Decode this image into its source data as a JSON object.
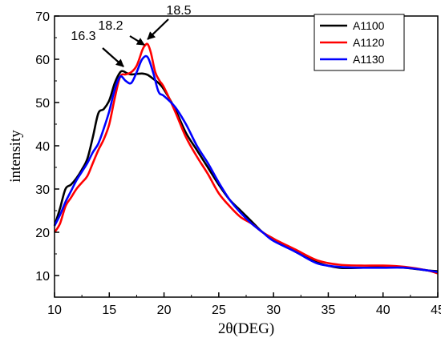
{
  "chart_data": {
    "type": "line",
    "xlabel": "2θ(DEG)",
    "ylabel": "intensity",
    "xlim": [
      10,
      45
    ],
    "ylim": [
      5,
      70
    ],
    "xticks": [
      10,
      15,
      20,
      25,
      30,
      35,
      40,
      45
    ],
    "yticks": [
      10,
      20,
      30,
      40,
      50,
      60,
      70
    ],
    "grid": false,
    "legend_position": "top-right",
    "series": [
      {
        "name": "A1100",
        "color": "#000000",
        "x": [
          10,
          10.5,
          11,
          11.5,
          12,
          12.5,
          13,
          13.5,
          14,
          14.5,
          15,
          15.5,
          16,
          16.3,
          16.6,
          17,
          17.5,
          18,
          18.5,
          19,
          19.5,
          20,
          21,
          22,
          23,
          24,
          25,
          26,
          27,
          28,
          29,
          30,
          32,
          34,
          36,
          38,
          40,
          42,
          44,
          45
        ],
        "y": [
          21.5,
          25.5,
          30,
          31,
          32.5,
          34.5,
          37,
          42,
          47.5,
          48.5,
          50.5,
          54.5,
          57,
          57.2,
          56.8,
          56.5,
          56.6,
          56.7,
          56.4,
          55.5,
          54.5,
          53,
          48.5,
          43,
          39,
          35,
          31,
          27.5,
          25,
          22.5,
          20,
          18.5,
          15.5,
          13,
          11.8,
          11.8,
          12,
          11.8,
          11.2,
          11
        ]
      },
      {
        "name": "A1120",
        "color": "#ff0000",
        "x": [
          10,
          10.5,
          11,
          11.5,
          12,
          12.5,
          13,
          13.5,
          14,
          14.5,
          15,
          15.5,
          16,
          16.5,
          17,
          17.5,
          18,
          18.2,
          18.5,
          18.8,
          19.2,
          19.6,
          20,
          21,
          22,
          23,
          24,
          25,
          26,
          27,
          28,
          29,
          30,
          32,
          34,
          36,
          38,
          40,
          42,
          44,
          45
        ],
        "y": [
          20,
          22,
          26,
          28,
          30,
          31.5,
          33,
          36,
          39,
          41.5,
          45,
          51,
          56,
          56.5,
          57,
          58.5,
          62,
          63,
          63.5,
          61.5,
          57,
          55,
          53.5,
          48,
          42,
          37.5,
          33.5,
          29,
          26,
          23.5,
          22,
          20,
          18.5,
          16,
          13.5,
          12.5,
          12.3,
          12.3,
          12,
          11.2,
          10.5
        ]
      },
      {
        "name": "A1130",
        "color": "#0000ff",
        "x": [
          10,
          10.5,
          11,
          11.5,
          12,
          12.5,
          13,
          13.5,
          14,
          14.5,
          15,
          15.5,
          16,
          16.5,
          17,
          17.5,
          18,
          18.5,
          19,
          19.5,
          20,
          21,
          22,
          23,
          24,
          25,
          26,
          27,
          28,
          29,
          30,
          32,
          34,
          36,
          38,
          40,
          42,
          44,
          45
        ],
        "y": [
          21.5,
          24,
          27,
          29.5,
          32,
          34,
          36,
          38.5,
          40.5,
          44,
          48,
          53,
          56,
          55,
          54.5,
          57,
          60,
          60.5,
          57,
          52.5,
          51.5,
          49,
          45,
          40,
          36,
          31.5,
          27.5,
          24.5,
          22,
          20,
          18,
          15.5,
          12.8,
          12,
          11.8,
          11.8,
          11.8,
          11.2,
          10.8
        ]
      }
    ],
    "annotations": [
      {
        "text": "16.3",
        "x": 16.3,
        "y": 57.2
      },
      {
        "text": "18.2",
        "x": 18.2,
        "y": 62.2
      },
      {
        "text": "18.5",
        "x": 18.5,
        "y": 63.5
      }
    ]
  }
}
